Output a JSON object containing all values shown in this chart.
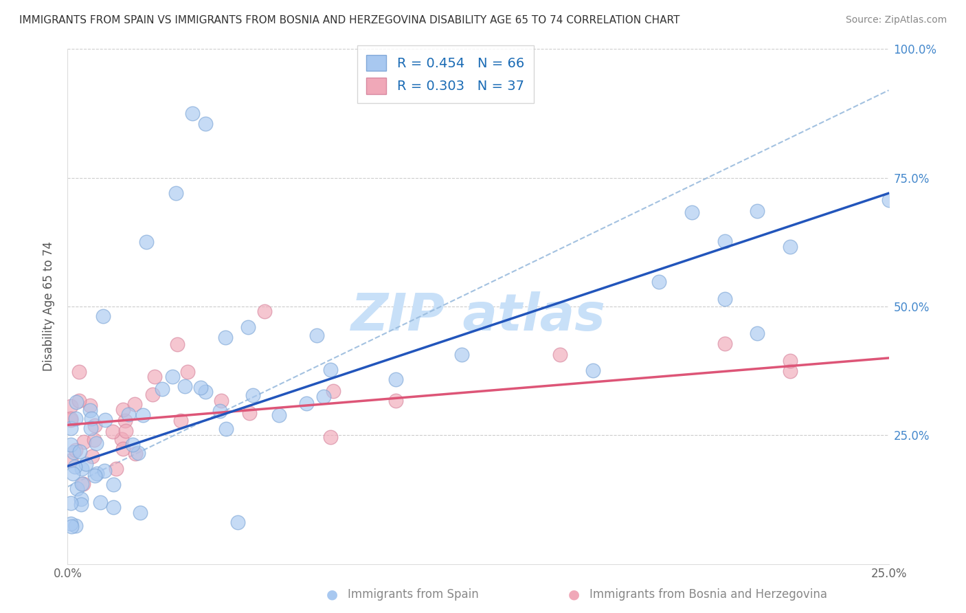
{
  "title": "IMMIGRANTS FROM SPAIN VS IMMIGRANTS FROM BOSNIA AND HERZEGOVINA DISABILITY AGE 65 TO 74 CORRELATION CHART",
  "source": "Source: ZipAtlas.com",
  "ylabel": "Disability Age 65 to 74",
  "xlim": [
    0.0,
    0.25
  ],
  "ylim": [
    0.0,
    1.0
  ],
  "spain_R": 0.454,
  "spain_N": 66,
  "bosnia_R": 0.303,
  "bosnia_N": 37,
  "spain_color": "#a8c8f0",
  "spain_edge": "#80a8d8",
  "bosnia_color": "#f0a8b8",
  "bosnia_edge": "#d888a0",
  "spain_line_color": "#2255bb",
  "bosnia_line_color": "#dd5577",
  "diagonal_color": "#99bbdd",
  "background_color": "#ffffff",
  "grid_color": "#cccccc",
  "ytick_color": "#4488cc",
  "title_color": "#333333",
  "source_color": "#888888",
  "watermark_color": "#c8e0f8",
  "legend_label_color": "#1a6bb5",
  "bottom_label_color": "#888888"
}
